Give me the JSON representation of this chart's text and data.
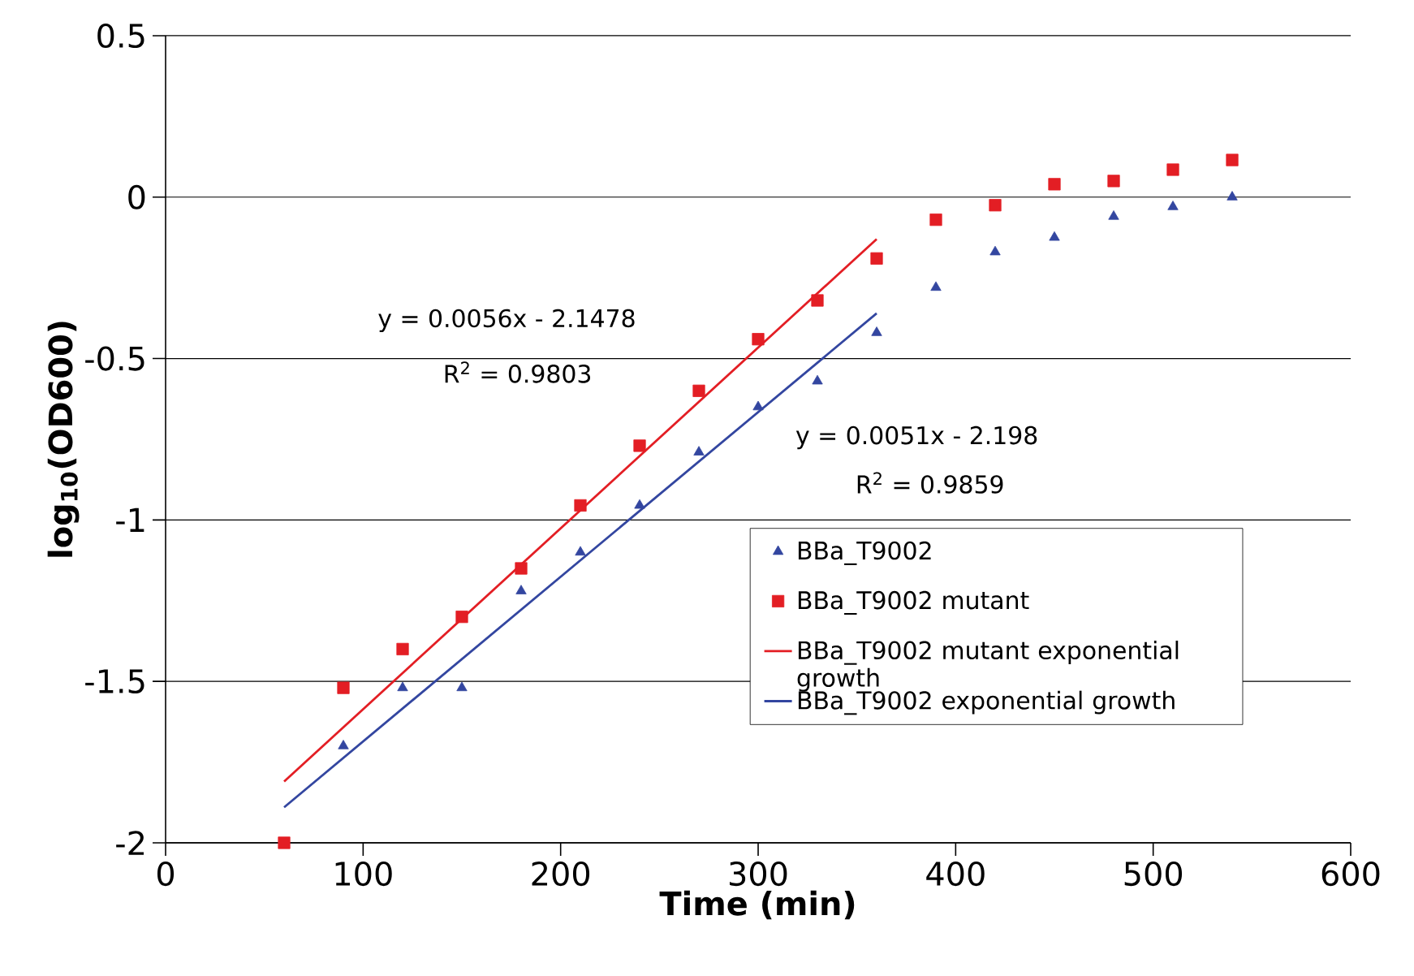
{
  "chart_data": {
    "type": "scatter",
    "xlabel": "**Time (min)**",
    "ylabel": "**log$_{10}$(OD600)**",
    "xlim": [
      0,
      600
    ],
    "xticks": [
      0,
      100,
      200,
      300,
      400,
      500,
      600
    ],
    "ylim": [
      -2,
      0.5
    ],
    "yticks": [
      -2,
      -1.5,
      -1,
      -0.5,
      0,
      0.5
    ],
    "grid": "y",
    "legend": "bottom right",
    "series": [
      {
        "name": "BBa_T9002",
        "marker": "triangle",
        "color": "#3346a0",
        "x": [
          90,
          120,
          150,
          180,
          210,
          240,
          270,
          300,
          330,
          360,
          390,
          420,
          450,
          480,
          510,
          540
        ],
        "values": [
          -1.7,
          -1.52,
          -1.52,
          -1.22,
          -1.1,
          -0.955,
          -0.79,
          -0.65,
          -0.57,
          -0.42,
          -0.28,
          -0.17,
          -0.125,
          -0.06,
          -0.03,
          0.0
        ]
      },
      {
        "name": "BBa_T9002 mutant",
        "marker": "square",
        "color": "#e31e24",
        "x": [
          60,
          90,
          120,
          150,
          180,
          210,
          240,
          270,
          300,
          330,
          360,
          390,
          420,
          450,
          480,
          510,
          540
        ],
        "values": [
          -2.0,
          -1.52,
          -1.4,
          -1.3,
          -1.15,
          -0.955,
          -0.77,
          -0.6,
          -0.44,
          -0.32,
          -0.19,
          -0.07,
          -0.025,
          0.04,
          0.05,
          0.085,
          0.115
        ]
      },
      {
        "name": "BBa_T9002 mutant exponential growth",
        "type": "line",
        "marker": "none",
        "line_style": "solid",
        "color": "#e31e24",
        "x": [
          60,
          360
        ],
        "values": [
          -1.81,
          -0.13
        ]
      },
      {
        "name": "BBa_T9002 exponential growth",
        "type": "line",
        "marker": "none",
        "line_style": "solid",
        "color": "#3346a0",
        "x": [
          60,
          360
        ],
        "values": [
          -1.89,
          -0.36
        ]
      }
    ],
    "annotations": [
      "y = 0.0056x - 2.1478",
      "R$^{2}$ = 0.9803",
      "y = 0.0051x - 2.198",
      "R$^{2}$ = 0.9859"
    ]
  }
}
